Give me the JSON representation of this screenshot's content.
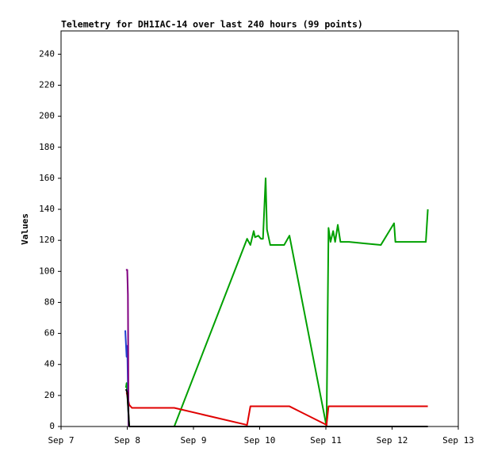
{
  "chart_data": {
    "type": "line",
    "title": "Telemetry for DH1IAC-14 over last 240 hours (99 points)",
    "y_label": "Values",
    "xlim": [
      7,
      13
    ],
    "xticks": [
      {
        "value": 7,
        "label": "Sep 7"
      },
      {
        "value": 8,
        "label": "Sep 8"
      },
      {
        "value": 9,
        "label": "Sep 9"
      },
      {
        "value": 10,
        "label": "Sep 10"
      },
      {
        "value": 11,
        "label": "Sep 11"
      },
      {
        "value": 12,
        "label": "Sep 12"
      },
      {
        "value": 13,
        "label": "Sep 13"
      }
    ],
    "ylim": [
      0,
      255
    ],
    "yticks": [
      0,
      20,
      40,
      60,
      80,
      100,
      120,
      140,
      160,
      180,
      200,
      220,
      240
    ],
    "series": [
      {
        "color": "#00a000",
        "x": [
          7.98,
          7.99,
          8.03,
          8.71,
          9.81,
          9.86,
          9.91,
          9.93,
          9.98,
          10.02,
          10.05,
          10.09,
          10.11,
          10.16,
          10.37,
          10.45,
          11.01,
          11.04,
          11.07,
          11.11,
          11.14,
          11.18,
          11.22,
          11.35,
          11.59,
          11.83,
          12.03,
          12.05,
          12.31,
          12.51,
          12.54
        ],
        "values": [
          25,
          28,
          0,
          0,
          121,
          117,
          126,
          122,
          123,
          121,
          121,
          160,
          127,
          117,
          117,
          123,
          0,
          128,
          119,
          126,
          119,
          130,
          119,
          119,
          118,
          117,
          131,
          119,
          119,
          119,
          140
        ]
      },
      {
        "color": "#e00000",
        "x": [
          7.99,
          8.03,
          8.07,
          8.71,
          9.81,
          9.86,
          10.45,
          11.01,
          11.04,
          12.54
        ],
        "values": [
          22,
          14,
          12,
          12,
          1,
          13,
          13,
          1,
          13,
          13
        ]
      },
      {
        "color": "#2040d0",
        "x": [
          7.97,
          7.99,
          8.0,
          8.02
        ],
        "values": [
          62,
          45,
          52,
          0
        ]
      },
      {
        "color": "#800080",
        "x": [
          7.98,
          8.0,
          8.01,
          8.02
        ],
        "values": [
          101,
          101,
          85,
          0
        ]
      },
      {
        "color": "#000000",
        "x": [
          7.98,
          8.0,
          8.03,
          12.54
        ],
        "values": [
          24,
          22,
          0,
          0
        ]
      }
    ]
  }
}
